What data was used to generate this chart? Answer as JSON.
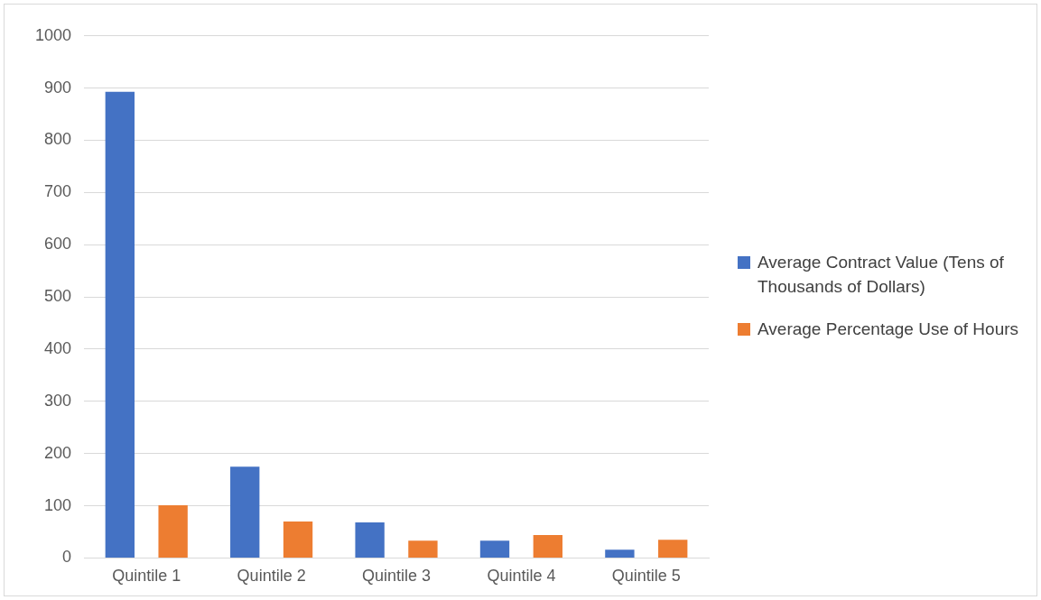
{
  "chart_data": {
    "type": "bar",
    "categories": [
      "Quintile 1",
      "Quintile 2",
      "Quintile 3",
      "Quintile 4",
      "Quintile 5"
    ],
    "series": [
      {
        "name": "Average Contract Value (Tens of Thousands of Dollars)",
        "color": "#4472c4",
        "values": [
          893,
          175,
          68,
          33,
          16
        ]
      },
      {
        "name": "Average Percentage Use of Hours",
        "color": "#ed7d31",
        "values": [
          101,
          70,
          33,
          44,
          35
        ]
      }
    ],
    "ylim": [
      0,
      1000
    ],
    "yticks": [
      0,
      100,
      200,
      300,
      400,
      500,
      600,
      700,
      800,
      900,
      1000
    ],
    "grid": "y",
    "legend": "right"
  }
}
